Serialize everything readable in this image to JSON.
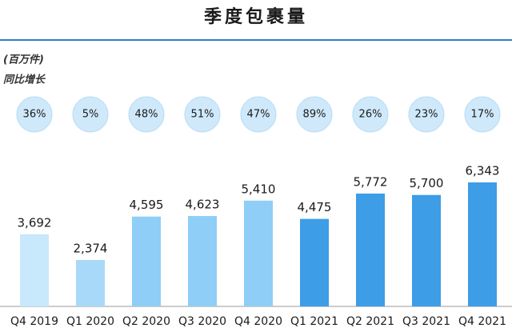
{
  "chart_data": {
    "type": "bar",
    "title": "季度包裹量",
    "unit": "(百万件)",
    "categories": [
      "Q4 2019",
      "Q1 2020",
      "Q2 2020",
      "Q3 2020",
      "Q4 2020",
      "Q1 2021",
      "Q2 2021",
      "Q3 2021",
      "Q4 2021"
    ],
    "values": [
      3692,
      2374,
      4595,
      4623,
      5410,
      4475,
      5772,
      5700,
      6343
    ],
    "value_labels": [
      "3,692",
      "2,374",
      "4,595",
      "4,623",
      "5,410",
      "4,475",
      "5,772",
      "5,700",
      "6,343"
    ],
    "colors": [
      "#c8e8fb",
      "#a9d9f8",
      "#8fcef6",
      "#8fcef6",
      "#8fcef6",
      "#3d9de6",
      "#3d9de6",
      "#3d9de6",
      "#3d9de6"
    ],
    "growth": {
      "label": "同比增长",
      "values": [
        36,
        5,
        48,
        51,
        47,
        89,
        26,
        23,
        17
      ],
      "value_labels": [
        "36%",
        "5%",
        "48%",
        "51%",
        "47%",
        "89%",
        "26%",
        "23%",
        "17%"
      ],
      "color": "#cfe9fb"
    }
  }
}
